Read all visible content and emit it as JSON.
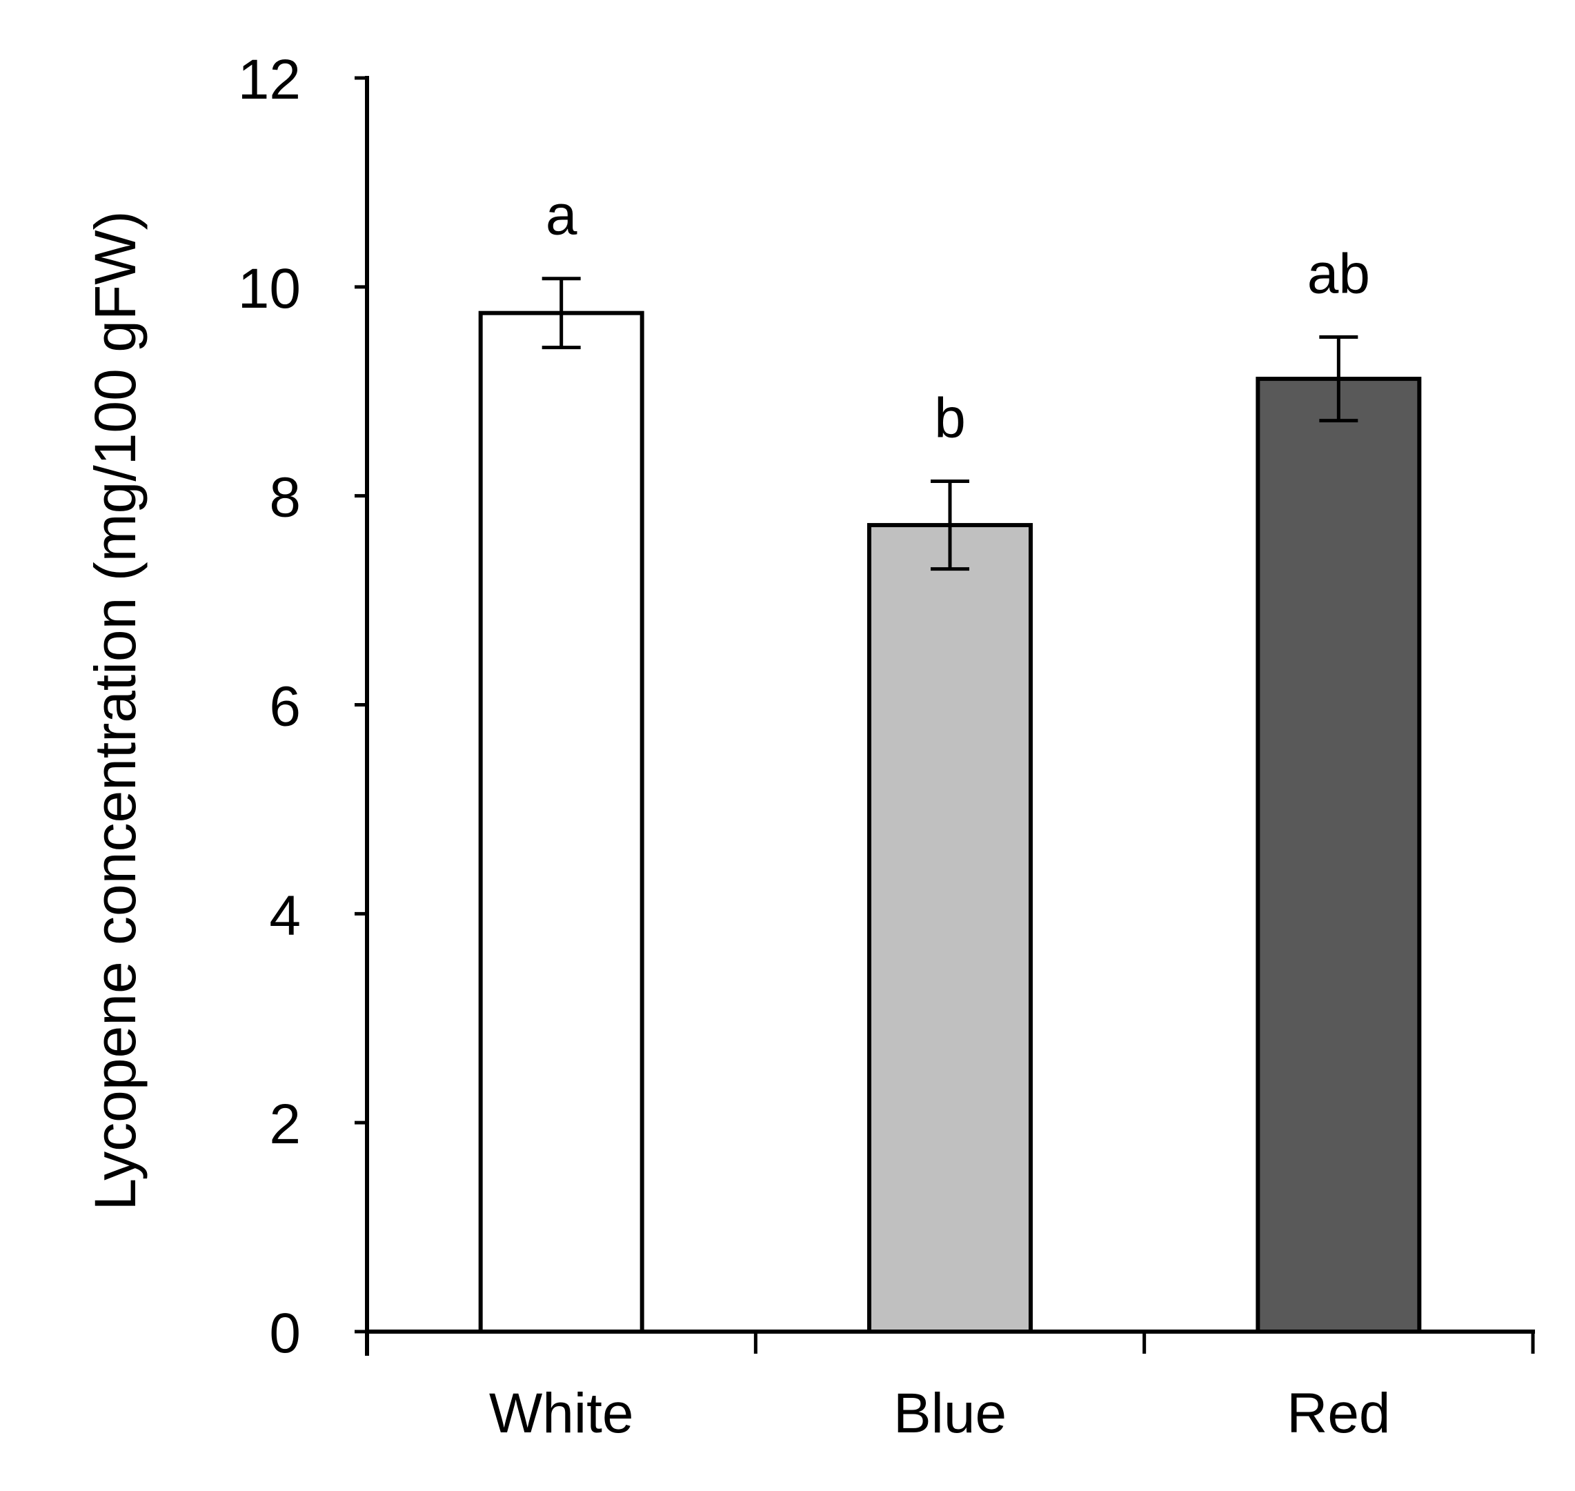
{
  "chart_data": {
    "type": "bar",
    "title": "",
    "xlabel": "",
    "ylabel": "Lycopene concentration (mg/100 gFW)",
    "ylim": [
      0,
      12
    ],
    "yticks": [
      0,
      2,
      4,
      6,
      8,
      10,
      12
    ],
    "ytick_labels": [
      "0",
      "2",
      "4",
      "6",
      "8",
      "10",
      "12"
    ],
    "categories": [
      "White",
      "Blue",
      "Red"
    ],
    "values": [
      9.75,
      7.72,
      9.12
    ],
    "errors": [
      0.33,
      0.42,
      0.4
    ],
    "significance_letters": [
      "a",
      "b",
      "ab"
    ],
    "bar_colors": [
      "#ffffff",
      "#c0c0c0",
      "#595959"
    ],
    "grid": false,
    "legend": "none"
  }
}
